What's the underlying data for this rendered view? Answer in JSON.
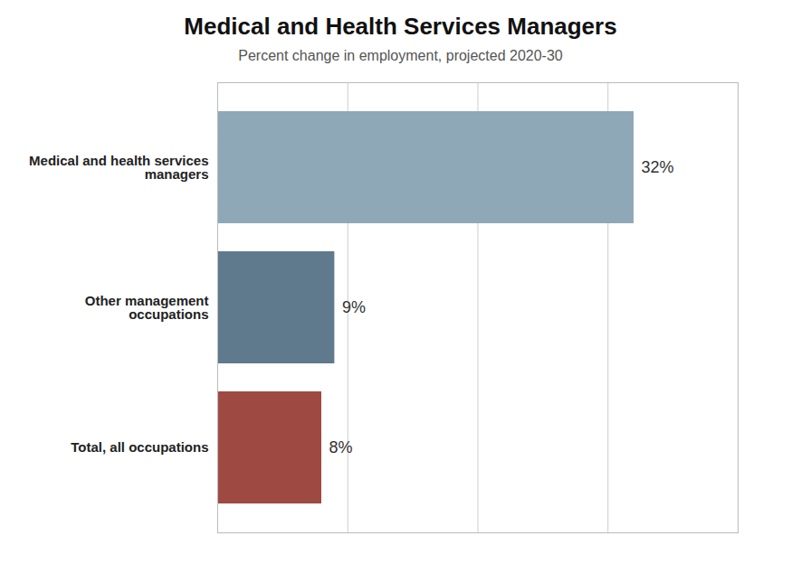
{
  "chart_data": {
    "type": "bar",
    "orientation": "horizontal",
    "title": "Medical and Health Services Managers",
    "subtitle": "Percent change in employment, projected 2020-30",
    "categories": [
      "Medical and health services\nmanagers",
      "Other management\noccupations",
      "Total, all occupations"
    ],
    "values": [
      32,
      9,
      8
    ],
    "value_labels": [
      "32%",
      "9%",
      "8%"
    ],
    "data_labels": true,
    "colors": [
      "#8fa8b8",
      "#5f7a8c",
      "#9e4a42"
    ],
    "xlim": [
      0,
      40
    ],
    "xticks": [
      0,
      10,
      20,
      30,
      40
    ],
    "grid": true,
    "tick_labels": "y"
  }
}
